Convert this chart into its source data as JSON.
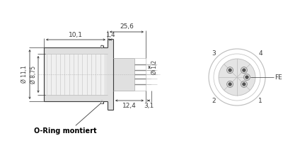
{
  "bg_color": "#ffffff",
  "line_color": "#3a3a3a",
  "dim_color": "#3a3a3a",
  "light_gray": "#bbbbbb",
  "mid_gray": "#888888",
  "fill_gray": "#e0e0e0",
  "hatch_gray": "#cccccc",
  "annotation_text": "O-Ring montiert",
  "dim_25_6": "25,6",
  "dim_10_1": "10,1",
  "dim_1_4": "1,4",
  "dim_1_2": "Ø 1,2",
  "dim_11_1": "Ø 11,1",
  "dim_8_75": "Ø 8,75",
  "dim_12_4": "12,4",
  "dim_3_1": "3,1"
}
